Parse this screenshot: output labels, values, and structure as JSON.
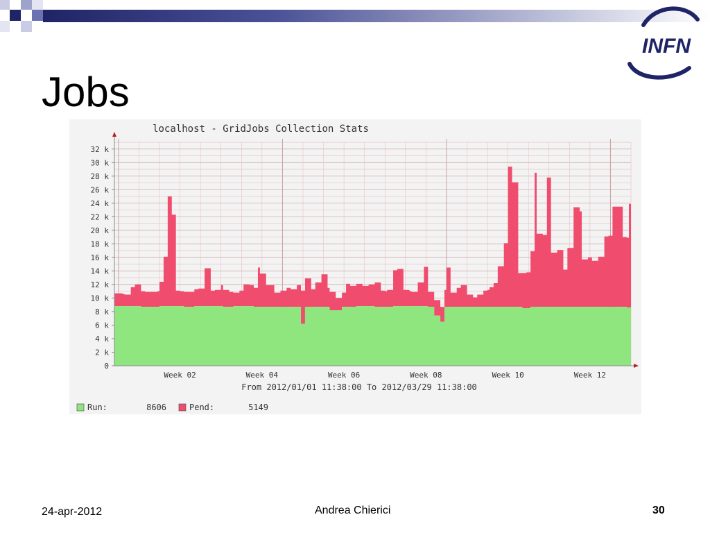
{
  "slide": {
    "title": "Jobs",
    "logo_text": "INFN",
    "footer": {
      "date": "24-apr-2012",
      "author": "Andrea Chierici",
      "page": "30"
    }
  },
  "colors": {
    "deco_dark": "#1f2466",
    "deco_light": "#9ea3cc",
    "run": "#90e67e",
    "pend": "#f04d6e",
    "logo": "#1f2466",
    "chart_bg": "#f3f3f3",
    "grid_minor": "#e6c3c3",
    "grid_major": "#c9a1a1",
    "axis": "#888888",
    "axis_arrow": "#b22222"
  },
  "chart_data": {
    "type": "area",
    "stacked": true,
    "title": "localhost - GridJobs Collection Stats",
    "subtitle": "From 2012/01/01 11:38:00 To 2012/03/29 11:38:00",
    "xlabel": "",
    "ylabel": "",
    "ylim": [
      0,
      33000
    ],
    "xlim_weeks": [
      0.9,
      13.5
    ],
    "grid": true,
    "legend_placement": "bottom-left",
    "y_ticks": [
      {
        "value": 0,
        "label": "0"
      },
      {
        "value": 2000,
        "label": "2 k"
      },
      {
        "value": 4000,
        "label": "4 k"
      },
      {
        "value": 6000,
        "label": "6 k"
      },
      {
        "value": 8000,
        "label": "8 k"
      },
      {
        "value": 10000,
        "label": "10 k"
      },
      {
        "value": 12000,
        "label": "12 k"
      },
      {
        "value": 14000,
        "label": "14 k"
      },
      {
        "value": 16000,
        "label": "16 k"
      },
      {
        "value": 18000,
        "label": "18 k"
      },
      {
        "value": 20000,
        "label": "20 k"
      },
      {
        "value": 22000,
        "label": "22 k"
      },
      {
        "value": 24000,
        "label": "24 k"
      },
      {
        "value": 26000,
        "label": "26 k"
      },
      {
        "value": 28000,
        "label": "28 k"
      },
      {
        "value": 30000,
        "label": "30 k"
      },
      {
        "value": 32000,
        "label": "32 k"
      }
    ],
    "x_ticks": [
      {
        "week": 2,
        "label": "Week 02"
      },
      {
        "week": 4,
        "label": "Week 04"
      },
      {
        "week": 6,
        "label": "Week 06"
      },
      {
        "week": 8,
        "label": "Week 08"
      },
      {
        "week": 10,
        "label": "Week 10"
      },
      {
        "week": 12,
        "label": "Week 12"
      }
    ],
    "legend": [
      {
        "series": "Run",
        "label": "Run:",
        "value": "8606"
      },
      {
        "series": "Pend",
        "label": "Pend:",
        "value": "5149"
      }
    ],
    "x_weeks": [
      0.9,
      1.0,
      1.1,
      1.15,
      1.3,
      1.4,
      1.55,
      1.65,
      1.8,
      1.95,
      2.0,
      2.1,
      2.2,
      2.3,
      2.4,
      2.5,
      2.6,
      2.7,
      2.75,
      2.85,
      2.95,
      3.1,
      3.25,
      3.35,
      3.5,
      3.55,
      3.7,
      3.8,
      3.95,
      4.05,
      4.2,
      4.3,
      4.4,
      4.45,
      4.6,
      4.8,
      4.95,
      5.1,
      5.2,
      5.35,
      5.45,
      5.55,
      5.7,
      5.8,
      5.95,
      6.1,
      6.15,
      6.3,
      6.45,
      6.55,
      6.65,
      6.8,
      6.95,
      7.1,
      7.25,
      7.4,
      7.5,
      7.55,
      7.7,
      7.8,
      7.95,
      8.1,
      8.15,
      8.3,
      8.45,
      8.55,
      8.7,
      8.85,
      8.95,
      9.0,
      9.1,
      9.25,
      9.35,
      9.5,
      9.65,
      9.75,
      9.9,
      10.0,
      10.05,
      10.15,
      10.25,
      10.4,
      10.5,
      10.6,
      10.75,
      10.85,
      10.95,
      11.05,
      11.15,
      11.2,
      11.35,
      11.45,
      11.55,
      11.7,
      11.85,
      11.95,
      12.1,
      12.25,
      12.3,
      12.45,
      12.55,
      12.7,
      12.85,
      12.95,
      13.05,
      13.15,
      13.2,
      13.3,
      13.4,
      13.45,
      13.5
    ],
    "series": [
      {
        "name": "Run",
        "color": "#90e67e",
        "values": [
          8800,
          8800,
          8800,
          8800,
          8800,
          8800,
          8700,
          8700,
          8700,
          8700,
          8800,
          8800,
          8800,
          8800,
          8800,
          8800,
          8700,
          8700,
          8700,
          8800,
          8800,
          8800,
          8800,
          8800,
          8800,
          8700,
          8700,
          8800,
          8800,
          8800,
          8800,
          8700,
          8700,
          8700,
          8700,
          8700,
          8700,
          8700,
          8700,
          8700,
          6200,
          8700,
          8700,
          8700,
          8700,
          8700,
          8200,
          8200,
          8700,
          8700,
          8700,
          8800,
          8800,
          8800,
          8700,
          8700,
          8700,
          8700,
          8800,
          8800,
          8800,
          8800,
          8800,
          8800,
          8800,
          8700,
          7400,
          6500,
          8700,
          8700,
          8700,
          8700,
          8700,
          8700,
          8700,
          8700,
          8700,
          8700,
          8700,
          8700,
          8700,
          8700,
          8700,
          8700,
          8700,
          8500,
          8500,
          8700,
          8700,
          8700,
          8700,
          8700,
          8700,
          8700,
          8700,
          8700,
          8700,
          8700,
          8700,
          8700,
          8700,
          8700,
          8700,
          8700,
          8700,
          8700,
          8700,
          8700,
          8600,
          8600,
          8600
        ]
      },
      {
        "name": "Pend",
        "color": "#f04d6e",
        "values": [
          1900,
          1900,
          1800,
          1700,
          2800,
          3200,
          2300,
          2200,
          2200,
          2300,
          3600,
          7300,
          16200,
          13500,
          2300,
          2200,
          2200,
          2200,
          2200,
          2500,
          2600,
          5600,
          2300,
          2400,
          3100,
          2500,
          2200,
          2000,
          2300,
          3200,
          3100,
          2800,
          5800,
          4900,
          3200,
          2100,
          2400,
          2800,
          2600,
          3200,
          4900,
          4200,
          2600,
          3600,
          4800,
          2800,
          2700,
          1800,
          2100,
          3400,
          3100,
          3300,
          3000,
          3200,
          3600,
          2400,
          2300,
          2500,
          5300,
          5500,
          2400,
          2200,
          2100,
          3500,
          5800,
          2200,
          2300,
          2200,
          2500,
          5800,
          2100,
          2800,
          3200,
          1800,
          1400,
          1800,
          2400,
          2500,
          2900,
          3500,
          6000,
          9400,
          20700,
          18400,
          5000,
          5200,
          5300,
          8200,
          19800,
          10800,
          10600,
          19100,
          8000,
          8400,
          5500,
          8700,
          14700,
          14100,
          7000,
          7300,
          6800,
          7400,
          10400,
          10500,
          14800,
          14800,
          14800,
          10300,
          10300,
          15300,
          15300
        ]
      }
    ]
  }
}
